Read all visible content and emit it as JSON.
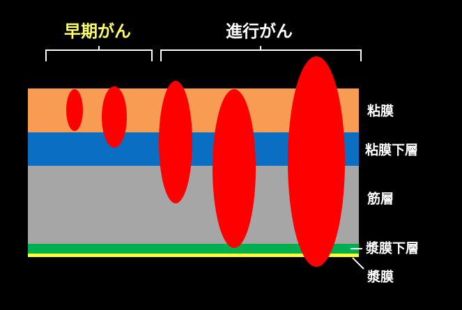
{
  "groups": {
    "early": "早期がん",
    "advanced": "進行がん"
  },
  "layers": [
    {
      "label": "粘膜"
    },
    {
      "label": "粘膜下層"
    },
    {
      "label": "筋層"
    },
    {
      "label": "漿膜下層"
    },
    {
      "label": "漿膜"
    }
  ]
}
